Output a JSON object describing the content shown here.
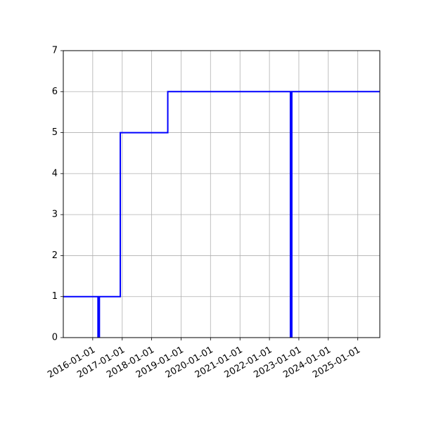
{
  "chart_data": {
    "type": "line",
    "title": "",
    "xlabel": "",
    "ylabel": "",
    "grid": true,
    "xlim": [
      "2015-01-01",
      "2025-10-01"
    ],
    "ylim": [
      0,
      7
    ],
    "x_ticks": [
      "2016-01-01",
      "2017-01-01",
      "2018-01-01",
      "2019-01-01",
      "2020-01-01",
      "2021-01-01",
      "2022-01-01",
      "2023-01-01",
      "2024-01-01",
      "2025-01-01"
    ],
    "y_ticks": [
      0,
      1,
      2,
      3,
      4,
      5,
      6,
      7
    ],
    "step_line": {
      "color": "#0000ff",
      "points": [
        {
          "x": "2015-01-01",
          "y": 1
        },
        {
          "x": "2016-12-08",
          "y": 1
        },
        {
          "x": "2016-12-08",
          "y": 5
        },
        {
          "x": "2018-07-20",
          "y": 5
        },
        {
          "x": "2018-07-20",
          "y": 6
        },
        {
          "x": "2025-10-01",
          "y": 6
        }
      ]
    },
    "vertical_bars": [
      {
        "x": "2016-03-15",
        "y_from": 0,
        "y_to": 1,
        "color": "#0000ff"
      },
      {
        "x": "2022-09-27",
        "y_from": 0,
        "y_to": 6,
        "color": "#0000ff"
      }
    ]
  }
}
